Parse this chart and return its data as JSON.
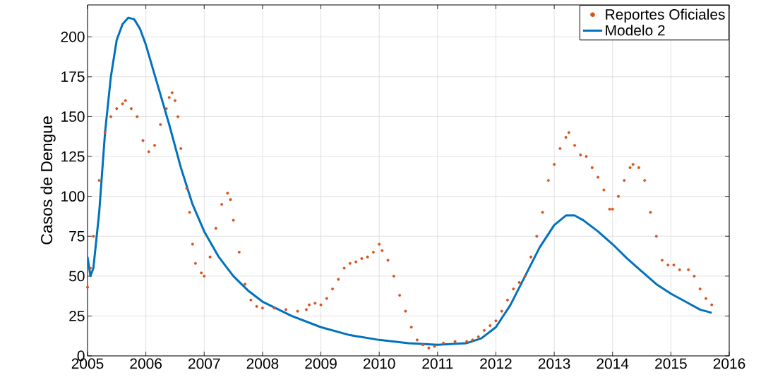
{
  "chart_data": {
    "type": "line",
    "ylabel": "Casos de Dengue",
    "xlim": [
      2005,
      2016
    ],
    "ylim": [
      0,
      220
    ],
    "xticks": [
      2005,
      2006,
      2007,
      2008,
      2009,
      2010,
      2011,
      2012,
      2013,
      2014,
      2015,
      2016
    ],
    "yticks": [
      0,
      25,
      50,
      75,
      100,
      125,
      150,
      175,
      200
    ],
    "grid": true,
    "legend": "top right",
    "marker": "circle",
    "series": [
      {
        "name": "Reportes Oficiales",
        "type": "scatter",
        "color": "#d95319",
        "x": [
          2005.0,
          2005.05,
          2005.1,
          2005.2,
          2005.3,
          2005.4,
          2005.5,
          2005.6,
          2005.65,
          2005.75,
          2005.85,
          2005.95,
          2006.05,
          2006.15,
          2006.25,
          2006.35,
          2006.4,
          2006.45,
          2006.5,
          2006.55,
          2006.6,
          2006.7,
          2006.75,
          2006.8,
          2006.85,
          2006.95,
          2007.0,
          2007.1,
          2007.2,
          2007.3,
          2007.4,
          2007.45,
          2007.5,
          2007.6,
          2007.7,
          2007.8,
          2007.9,
          2008.0,
          2008.2,
          2008.4,
          2008.6,
          2008.75,
          2008.8,
          2008.9,
          2009.0,
          2009.1,
          2009.2,
          2009.3,
          2009.4,
          2009.5,
          2009.6,
          2009.7,
          2009.8,
          2009.9,
          2010.0,
          2010.05,
          2010.15,
          2010.25,
          2010.35,
          2010.45,
          2010.55,
          2010.65,
          2010.75,
          2010.85,
          2010.95,
          2011.1,
          2011.3,
          2011.5,
          2011.6,
          2011.7,
          2011.8,
          2011.9,
          2012.0,
          2012.1,
          2012.2,
          2012.3,
          2012.4,
          2012.5,
          2012.6,
          2012.7,
          2012.8,
          2012.9,
          2013.0,
          2013.1,
          2013.2,
          2013.25,
          2013.35,
          2013.45,
          2013.55,
          2013.65,
          2013.75,
          2013.85,
          2013.95,
          2014.0,
          2014.1,
          2014.2,
          2014.3,
          2014.35,
          2014.45,
          2014.55,
          2014.65,
          2014.75,
          2014.85,
          2014.95,
          2015.05,
          2015.15,
          2015.3,
          2015.4,
          2015.5,
          2015.6,
          2015.7
        ],
        "values": [
          43,
          55,
          75,
          110,
          140,
          150,
          155,
          158,
          160,
          155,
          150,
          135,
          128,
          132,
          145,
          155,
          162,
          165,
          160,
          150,
          130,
          105,
          90,
          70,
          58,
          52,
          50,
          62,
          80,
          95,
          102,
          98,
          85,
          65,
          45,
          35,
          31,
          30,
          30,
          29,
          28,
          29,
          32,
          33,
          32,
          36,
          42,
          48,
          55,
          58,
          59,
          61,
          62,
          65,
          70,
          66,
          60,
          50,
          38,
          28,
          18,
          10,
          7,
          5,
          6,
          8,
          9,
          9,
          10,
          12,
          16,
          19,
          22,
          28,
          35,
          42,
          46,
          50,
          62,
          75,
          90,
          110,
          120,
          130,
          137,
          140,
          132,
          126,
          125,
          118,
          112,
          104,
          92,
          92,
          100,
          110,
          118,
          120,
          118,
          110,
          90,
          75,
          60,
          57,
          57,
          54,
          54,
          50,
          42,
          36,
          32
        ]
      },
      {
        "name": "Modelo 2",
        "type": "line",
        "marker": "none",
        "line_style": "solid",
        "color": "#0072bd",
        "x": [
          2005.0,
          2005.05,
          2005.1,
          2005.2,
          2005.3,
          2005.4,
          2005.5,
          2005.6,
          2005.7,
          2005.8,
          2005.9,
          2006.0,
          2006.2,
          2006.4,
          2006.6,
          2006.8,
          2007.0,
          2007.25,
          2007.5,
          2007.75,
          2008.0,
          2008.5,
          2009.0,
          2009.5,
          2010.0,
          2010.5,
          2011.0,
          2011.5,
          2011.75,
          2012.0,
          2012.25,
          2012.5,
          2012.75,
          2013.0,
          2013.2,
          2013.35,
          2013.5,
          2013.75,
          2014.0,
          2014.25,
          2014.5,
          2014.75,
          2015.0,
          2015.25,
          2015.5,
          2015.7
        ],
        "values": [
          62,
          50,
          55,
          90,
          140,
          175,
          198,
          208,
          212,
          211,
          205,
          195,
          170,
          145,
          118,
          95,
          78,
          62,
          50,
          41,
          34,
          25,
          18,
          13,
          10,
          8,
          7,
          8,
          11,
          18,
          32,
          50,
          68,
          82,
          88,
          88,
          85,
          78,
          70,
          61,
          53,
          45,
          39,
          34,
          29,
          27
        ]
      }
    ]
  }
}
